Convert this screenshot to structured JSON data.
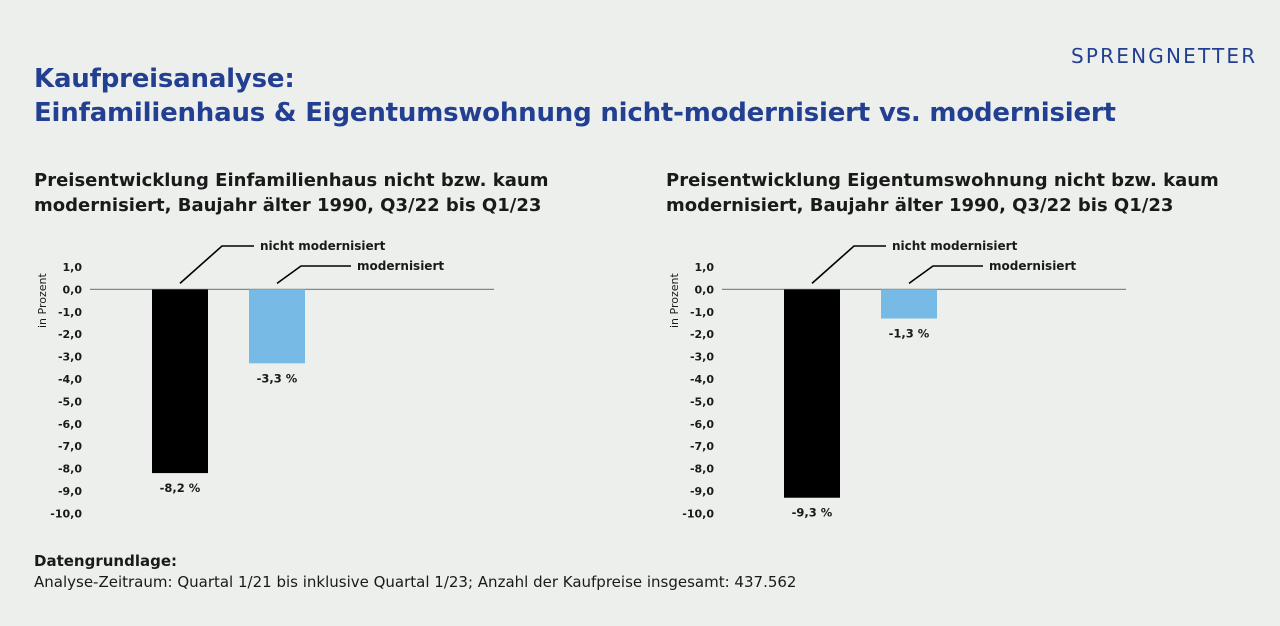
{
  "logo": "SPRENGNETTER",
  "title": {
    "line1": "Kaufpreisanalyse:",
    "line2": "Einfamilienhaus & Eigentumswohnung nicht-modernisiert vs. modernisiert"
  },
  "footer": {
    "heading": "Datengrundlage:",
    "text": "Analyse-Zeitraum: Quartal 1/21 bis inklusive Quartal 1/23; Anzahl der Kaufpreise insgesamt: 437.562"
  },
  "colors": {
    "title": "#233f91",
    "bar_not_modernized": "#000000",
    "bar_modernized": "#78bae6",
    "axis": "#808a8a",
    "background": "#ecefec"
  },
  "chart_data": [
    {
      "type": "bar",
      "title_line1": "Preisentwicklung Einfamilienhaus nicht bzw. kaum",
      "title_line2": "modernisiert, Baujahr älter 1990, Q3/22 bis Q1/23",
      "ylabel": "in Prozent",
      "ylim": [
        -10,
        1
      ],
      "yticks": [
        "1,0",
        "0,0",
        "-1,0",
        "-2,0",
        "-3,0",
        "-4,0",
        "-5,0",
        "-6,0",
        "-7,0",
        "-8,0",
        "-9,0",
        "-10,0"
      ],
      "series": [
        {
          "name": "nicht modernisiert",
          "value": -8.2,
          "label": "-8,2 %"
        },
        {
          "name": "modernisiert",
          "value": -3.3,
          "label": "-3,3 %"
        }
      ]
    },
    {
      "type": "bar",
      "title_line1": "Preisentwicklung Eigentumswohnung nicht bzw. kaum",
      "title_line2": "modernisiert, Baujahr älter 1990, Q3/22 bis Q1/23",
      "ylabel": "in Prozent",
      "ylim": [
        -10,
        1
      ],
      "yticks": [
        "1,0",
        "0,0",
        "-1,0",
        "-2,0",
        "-3,0",
        "-4,0",
        "-5,0",
        "-6,0",
        "-7,0",
        "-8,0",
        "-9,0",
        "-10,0"
      ],
      "series": [
        {
          "name": "nicht modernisiert",
          "value": -9.3,
          "label": "-9,3 %"
        },
        {
          "name": "modernisiert",
          "value": -1.3,
          "label": "-1,3 %"
        }
      ]
    }
  ]
}
